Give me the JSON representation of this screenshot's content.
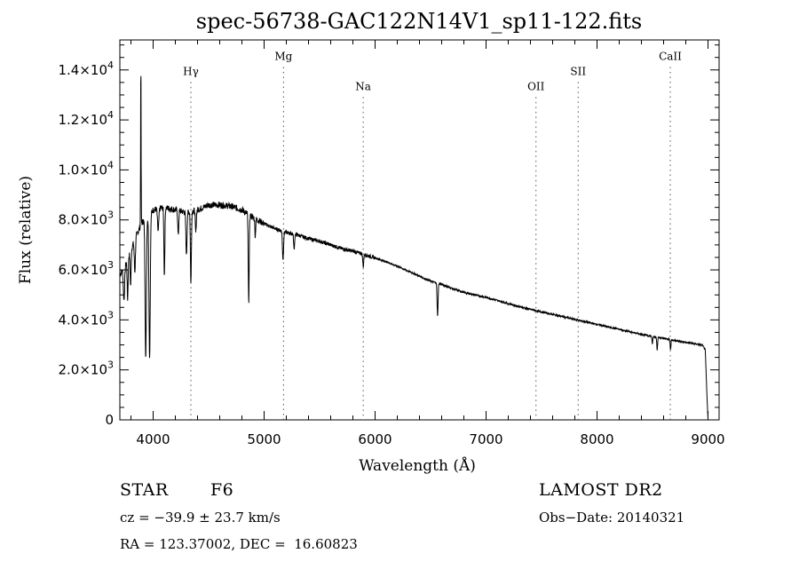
{
  "chart_data": {
    "type": "line",
    "title": "spec-56738-GAC122N14V1_sp11-122.fits",
    "xlabel": "Wavelength (Å)",
    "ylabel": "Flux (relative)",
    "xlim": [
      3700,
      9100
    ],
    "ylim": [
      0,
      15200
    ],
    "x_ticks": [
      {
        "value": 4000,
        "label": "4000"
      },
      {
        "value": 5000,
        "label": "5000"
      },
      {
        "value": 6000,
        "label": "6000"
      },
      {
        "value": 7000,
        "label": "7000"
      },
      {
        "value": 8000,
        "label": "8000"
      },
      {
        "value": 9000,
        "label": "9000"
      }
    ],
    "y_ticks": [
      {
        "value": 0,
        "mantissa": "0",
        "exponent": ""
      },
      {
        "value": 2000,
        "mantissa": "2.0×10",
        "exponent": "3"
      },
      {
        "value": 4000,
        "mantissa": "4.0×10",
        "exponent": "3"
      },
      {
        "value": 6000,
        "mantissa": "6.0×10",
        "exponent": "3"
      },
      {
        "value": 8000,
        "mantissa": "8.0×10",
        "exponent": "3"
      },
      {
        "value": 10000,
        "mantissa": "1.0×10",
        "exponent": "4"
      },
      {
        "value": 12000,
        "mantissa": "1.2×10",
        "exponent": "4"
      },
      {
        "value": 14000,
        "mantissa": "1.4×10",
        "exponent": "4"
      }
    ],
    "lines": [
      {
        "label": "Hγ",
        "wavelength": 4340,
        "label_flux": 13800
      },
      {
        "label": "Mg",
        "wavelength": 5175,
        "label_flux": 14400
      },
      {
        "label": "Na",
        "wavelength": 5893,
        "label_flux": 13200
      },
      {
        "label": "OII",
        "wavelength": 7450,
        "label_flux": 13200
      },
      {
        "label": "SII",
        "wavelength": 7830,
        "label_flux": 13800
      },
      {
        "label": "CaII",
        "wavelength": 8660,
        "label_flux": 14400
      }
    ],
    "series": [
      {
        "continuum": [
          [
            3700,
            5800
          ],
          [
            3750,
            6200
          ],
          [
            3800,
            6800
          ],
          [
            3850,
            7400
          ],
          [
            3900,
            7900
          ],
          [
            3950,
            8100
          ],
          [
            4000,
            8400
          ],
          [
            4100,
            8500
          ],
          [
            4200,
            8400
          ],
          [
            4300,
            8300
          ],
          [
            4400,
            8400
          ],
          [
            4500,
            8600
          ],
          [
            4600,
            8600
          ],
          [
            4700,
            8550
          ],
          [
            4800,
            8400
          ],
          [
            4900,
            8100
          ],
          [
            5000,
            7850
          ],
          [
            5100,
            7650
          ],
          [
            5200,
            7500
          ],
          [
            5300,
            7400
          ],
          [
            5400,
            7250
          ],
          [
            5500,
            7150
          ],
          [
            5600,
            7000
          ],
          [
            5700,
            6850
          ],
          [
            5800,
            6750
          ],
          [
            5900,
            6620
          ],
          [
            6000,
            6480
          ],
          [
            6100,
            6330
          ],
          [
            6200,
            6150
          ],
          [
            6300,
            5950
          ],
          [
            6400,
            5750
          ],
          [
            6500,
            5550
          ],
          [
            6600,
            5420
          ],
          [
            6700,
            5250
          ],
          [
            6800,
            5100
          ],
          [
            6900,
            5000
          ],
          [
            7000,
            4900
          ],
          [
            7100,
            4780
          ],
          [
            7200,
            4650
          ],
          [
            7300,
            4530
          ],
          [
            7400,
            4420
          ],
          [
            7500,
            4320
          ],
          [
            7600,
            4220
          ],
          [
            7700,
            4120
          ],
          [
            7800,
            4020
          ],
          [
            7900,
            3920
          ],
          [
            8000,
            3820
          ],
          [
            8100,
            3720
          ],
          [
            8200,
            3620
          ],
          [
            8300,
            3520
          ],
          [
            8400,
            3420
          ],
          [
            8500,
            3340
          ],
          [
            8600,
            3260
          ],
          [
            8700,
            3180
          ],
          [
            8800,
            3100
          ],
          [
            8900,
            3030
          ],
          [
            8950,
            2980
          ],
          [
            8975,
            2800
          ],
          [
            8990,
            1000
          ],
          [
            9000,
            0
          ]
        ],
        "features": [
          {
            "wavelength": 3737,
            "depth": 1300,
            "width": 8
          },
          {
            "wavelength": 3770,
            "depth": 1600,
            "width": 6
          },
          {
            "wavelength": 3797,
            "depth": 1400,
            "width": 6
          },
          {
            "wavelength": 3835,
            "depth": 1300,
            "width": 7
          },
          {
            "wavelength": 3889,
            "peak": 14300,
            "width": 3
          },
          {
            "wavelength": 3933,
            "depth": 5600,
            "width": 8
          },
          {
            "wavelength": 3968,
            "depth": 5700,
            "width": 8
          },
          {
            "wavelength": 4045,
            "depth": 900,
            "width": 8
          },
          {
            "wavelength": 4101,
            "depth": 2700,
            "width": 6
          },
          {
            "wavelength": 4226,
            "depth": 1000,
            "width": 6
          },
          {
            "wavelength": 4300,
            "depth": 1700,
            "width": 7
          },
          {
            "wavelength": 4340,
            "depth": 2900,
            "width": 6
          },
          {
            "wavelength": 4384,
            "depth": 900,
            "width": 6
          },
          {
            "wavelength": 4861,
            "depth": 3500,
            "width": 6
          },
          {
            "wavelength": 4920,
            "depth": 700,
            "width": 5
          },
          {
            "wavelength": 5170,
            "depth": 1100,
            "width": 7
          },
          {
            "wavelength": 5270,
            "depth": 600,
            "width": 6
          },
          {
            "wavelength": 5893,
            "depth": 500,
            "width": 6
          },
          {
            "wavelength": 6563,
            "depth": 1300,
            "width": 6
          },
          {
            "wavelength": 8498,
            "depth": 300,
            "width": 5
          },
          {
            "wavelength": 8542,
            "depth": 500,
            "width": 5
          },
          {
            "wavelength": 8662,
            "depth": 400,
            "width": 5
          }
        ]
      }
    ]
  },
  "footer": {
    "object_class": "STAR",
    "subclass": "F6",
    "survey": "LAMOST DR2",
    "cz": "cz = −39.9 ± 23.7 km/s",
    "obs_date": "Obs−Date: 20140321",
    "coords": "RA = 123.37002, DEC =  16.60823"
  }
}
